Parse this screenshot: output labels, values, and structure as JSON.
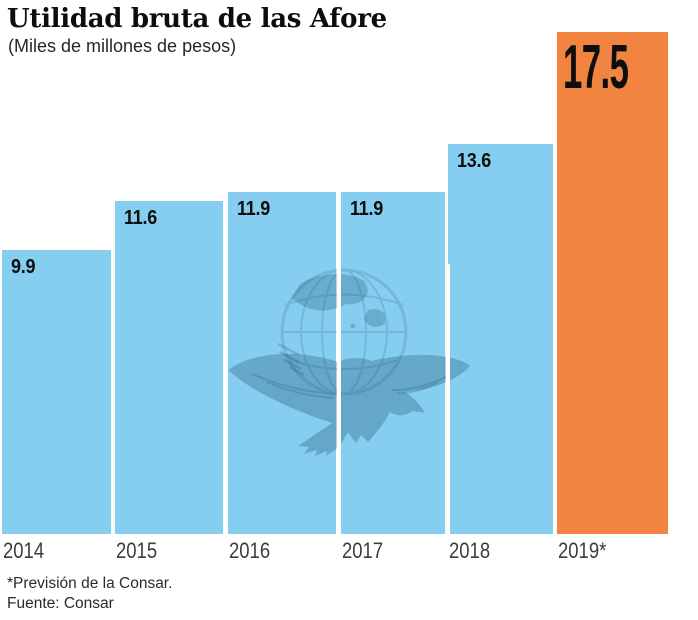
{
  "header": {
    "title": "Utilidad bruta de las Afore",
    "subtitle": "(Miles de millones de pesos)"
  },
  "chart_data": {
    "type": "bar",
    "title": "Utilidad bruta de las Afore",
    "subtitle": "(Miles de millones de pesos)",
    "unit": "Miles de millones de pesos",
    "categories": [
      "2014",
      "2015",
      "2016",
      "2017",
      "2018",
      "2019*"
    ],
    "values": [
      9.9,
      11.6,
      11.9,
      11.9,
      13.6,
      17.5
    ],
    "value_labels": [
      "9.9",
      "11.6",
      "11.9",
      "11.9",
      "13.6",
      "17.5"
    ],
    "highlight_index": 5,
    "bar_color": "#85CEF0",
    "highlight_color": "#F08440",
    "label_color": "#0e0e0e",
    "ylim": [
      0,
      17.5
    ],
    "grid": false,
    "axis_lines": false,
    "value_label_position": "inside-top-left",
    "x_label_alignment": "left"
  },
  "watermark": {
    "name": "eagle-globe-newspaper-logo",
    "color": "#1d5070"
  },
  "footer": {
    "note": "*Previsión de la Consar.",
    "source": "Fuente: Consar"
  }
}
